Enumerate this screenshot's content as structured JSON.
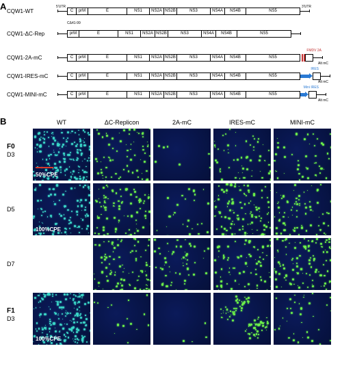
{
  "panelA": {
    "letter": "A",
    "utr5_label": "5'UTR",
    "utr3_label": "3'UTR",
    "segments": {
      "C": {
        "label": "C",
        "width": 14
      },
      "prM": {
        "label": "prM",
        "width": 18
      },
      "E": {
        "label": "E",
        "width": 58
      },
      "NS1": {
        "label": "NS1",
        "width": 34
      },
      "NS2A": {
        "label": "NS2A",
        "width": 22
      },
      "NS2B": {
        "label": "NS2B",
        "width": 20
      },
      "NS3": {
        "label": "NS3",
        "width": 50
      },
      "NS4A": {
        "label": "NS4A",
        "width": 22
      },
      "NS4B": {
        "label": "NS4B",
        "width": 32
      },
      "NS5": {
        "label": "NS5",
        "width": 80
      }
    },
    "cdelta_label": "CΔ41-99",
    "rows": [
      {
        "name": "CQW1-WT",
        "hasC": true,
        "tail": null
      },
      {
        "name": "CQW1-ΔC-Rep",
        "hasC": false,
        "tail": null,
        "cdelta": true
      },
      {
        "name": "CQW1-2A-mC",
        "hasC": true,
        "tail": {
          "kind": "fmdv",
          "top_label": "FMDV 2A",
          "color": "#c23030",
          "box_label": "Alt mC"
        }
      },
      {
        "name": "CQW1-IRES-mC",
        "hasC": true,
        "tail": {
          "kind": "ires",
          "top_label": "IRES",
          "color": "#2a7ad4",
          "box_label": "Alt mC"
        }
      },
      {
        "name": "CQW1-MINI-mC",
        "hasC": true,
        "tail": {
          "kind": "ires",
          "top_label": "Mini IRES",
          "color": "#2a7ad4",
          "box_label": "Alt mC",
          "mini": true
        }
      }
    ]
  },
  "panelB": {
    "letter": "B",
    "columns": [
      "WT",
      "ΔC-Replicon",
      "2A-mC",
      "IRES-mC",
      "MINI-mC"
    ],
    "generations": [
      {
        "gen": "F0",
        "rows": [
          "D3",
          "D5",
          "D7"
        ]
      },
      {
        "gen": "F1",
        "rows": [
          "D3"
        ]
      }
    ],
    "bg_blue": "#0b1a5a",
    "bg_blue_dark": "#05103a",
    "green": "#6cf04a",
    "cyan": "#3bd6c8",
    "scale_color": "#d93a2a",
    "tiles": {
      "F0-D3-WT": {
        "density": 180,
        "hue": "cyan",
        "cpe": "50%CPE",
        "scalebar": true
      },
      "F0-D3-ΔC-Replicon": {
        "density": 70,
        "hue": "green"
      },
      "F0-D3-2A-mC": {
        "density": 8,
        "hue": "green"
      },
      "F0-D3-IRES-mC": {
        "density": 60,
        "hue": "green"
      },
      "F0-D3-MINI-mC": {
        "density": 45,
        "hue": "green"
      },
      "F0-D5-WT": {
        "density": 110,
        "hue": "cyan",
        "cpe": "100%CPE"
      },
      "F0-D5-ΔC-Replicon": {
        "density": 90,
        "hue": "green"
      },
      "F0-D5-2A-mC": {
        "density": 25,
        "hue": "green"
      },
      "F0-D5-IRES-mC": {
        "density": 120,
        "hue": "green"
      },
      "F0-D5-MINI-mC": {
        "density": 75,
        "hue": "green"
      },
      "F0-D7-WT": {
        "blank": true
      },
      "F0-D7-ΔC-Replicon": {
        "density": 95,
        "hue": "green"
      },
      "F0-D7-2A-mC": {
        "density": 55,
        "hue": "green"
      },
      "F0-D7-IRES-mC": {
        "density": 80,
        "hue": "green"
      },
      "F0-D7-MINI-mC": {
        "density": 105,
        "hue": "green"
      },
      "F1-D3-WT": {
        "density": 200,
        "hue": "cyan",
        "cpe": "100%CPE"
      },
      "F1-D3-ΔC-Replicon": {
        "density": 15,
        "hue": "green"
      },
      "F1-D3-2A-mC": {
        "density": 4,
        "hue": "green"
      },
      "F1-D3-IRES-mC": {
        "density": 90,
        "hue": "green",
        "clustered": true
      },
      "F1-D3-MINI-mC": {
        "density": 35,
        "hue": "green"
      }
    }
  }
}
